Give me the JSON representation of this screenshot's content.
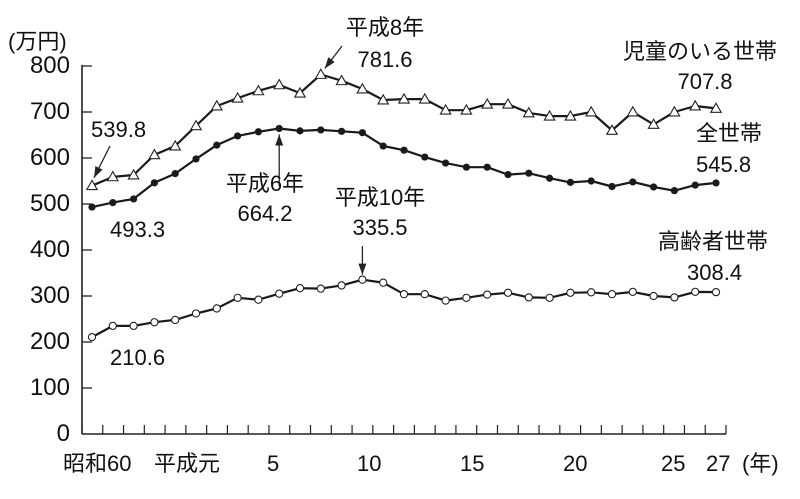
{
  "chart_data": {
    "type": "line",
    "title": "",
    "ylabel": "(万円)",
    "xlabel": "(年)",
    "ylim": [
      0,
      800
    ],
    "yticks": [
      0,
      100,
      200,
      300,
      400,
      500,
      600,
      700,
      800
    ],
    "grid": false,
    "x": [
      "昭和60",
      "61",
      "62",
      "63",
      "平成元",
      "2",
      "3",
      "4",
      "5",
      "6",
      "7",
      "8",
      "9",
      "10",
      "11",
      "12",
      "13",
      "14",
      "15",
      "16",
      "17",
      "18",
      "19",
      "20",
      "21",
      "22",
      "23",
      "24",
      "25",
      "26",
      "27"
    ],
    "xtick_labels": [
      {
        "label": "昭和60",
        "index": 0
      },
      {
        "label": "平成元",
        "index": 4
      },
      {
        "label": "5",
        "index": 8
      },
      {
        "label": "10",
        "index": 13
      },
      {
        "label": "15",
        "index": 18
      },
      {
        "label": "20",
        "index": 23
      },
      {
        "label": "25",
        "index": 28
      },
      {
        "label": "27",
        "index": 30
      }
    ],
    "series": [
      {
        "name": "児童のいる世帯",
        "marker": "triangle-open",
        "values": [
          539.8,
          559,
          563,
          607,
          626,
          670,
          713,
          730,
          746,
          759,
          741,
          781.6,
          768,
          750,
          726,
          728,
          728,
          704,
          704,
          717,
          717,
          698,
          691,
          691,
          700,
          660,
          700,
          673,
          700,
          713,
          707.8
        ]
      },
      {
        "name": "全世帯",
        "marker": "circle-filled",
        "values": [
          493.3,
          503,
          511,
          546,
          566,
          598,
          628,
          648,
          657,
          664.2,
          659,
          661,
          658,
          655,
          626,
          617,
          602,
          589,
          580,
          580,
          564,
          567,
          556,
          547,
          550,
          538,
          548,
          537,
          529,
          541,
          545.8
        ]
      },
      {
        "name": "高齢者世帯",
        "marker": "circle-open",
        "values": [
          210.6,
          235,
          235,
          243,
          248,
          262,
          273,
          296,
          292,
          305,
          317,
          316,
          323,
          335.5,
          329,
          304,
          304,
          290,
          296,
          303,
          307,
          297,
          296,
          307,
          308,
          304,
          309,
          300,
          297,
          309,
          308.4
        ]
      }
    ],
    "annotations": [
      {
        "text": [
          "539.8"
        ],
        "series": "児童のいる世帯",
        "index": 0,
        "arrow": true
      },
      {
        "text": [
          "平成8年",
          "781.6"
        ],
        "series": "児童のいる世帯",
        "index": 11,
        "arrow": true
      },
      {
        "text": [
          "児童のいる世帯",
          "707.8"
        ],
        "series": "児童のいる世帯",
        "index": 30,
        "arrow": false
      },
      {
        "text": [
          "493.3"
        ],
        "series": "全世帯",
        "index": 0,
        "arrow": false
      },
      {
        "text": [
          "平成6年",
          "664.2"
        ],
        "series": "全世帯",
        "index": 9,
        "arrow": true
      },
      {
        "text": [
          "全世帯",
          "545.8"
        ],
        "series": "全世帯",
        "index": 30,
        "arrow": false
      },
      {
        "text": [
          "210.6"
        ],
        "series": "高齢者世帯",
        "index": 0,
        "arrow": false
      },
      {
        "text": [
          "平成10年",
          "335.5"
        ],
        "series": "高齢者世帯",
        "index": 13,
        "arrow": true
      },
      {
        "text": [
          "高齢者世帯",
          "308.4"
        ],
        "series": "高齢者世帯",
        "index": 30,
        "arrow": false
      }
    ]
  },
  "labels": {
    "unit": "(万円)",
    "year_unit": "(年)",
    "y": [
      "800",
      "700",
      "600",
      "500",
      "400",
      "300",
      "200",
      "100",
      "0"
    ],
    "x": {
      "showa60": "昭和60",
      "heisei1": "平成元",
      "h5": "5",
      "h10": "10",
      "h15": "15",
      "h20": "20",
      "h25": "25",
      "h27": "27"
    },
    "child_first": "539.8",
    "child_peak_year": "平成8年",
    "child_peak_value": "781.6",
    "child_name": "児童のいる世帯",
    "child_last": "707.8",
    "all_first": "493.3",
    "all_peak_year": "平成6年",
    "all_peak_value": "664.2",
    "all_name": "全世帯",
    "all_last": "545.8",
    "elder_first": "210.6",
    "elder_peak_year": "平成10年",
    "elder_peak_value": "335.5",
    "elder_name": "高齢者世帯",
    "elder_last": "308.4"
  }
}
